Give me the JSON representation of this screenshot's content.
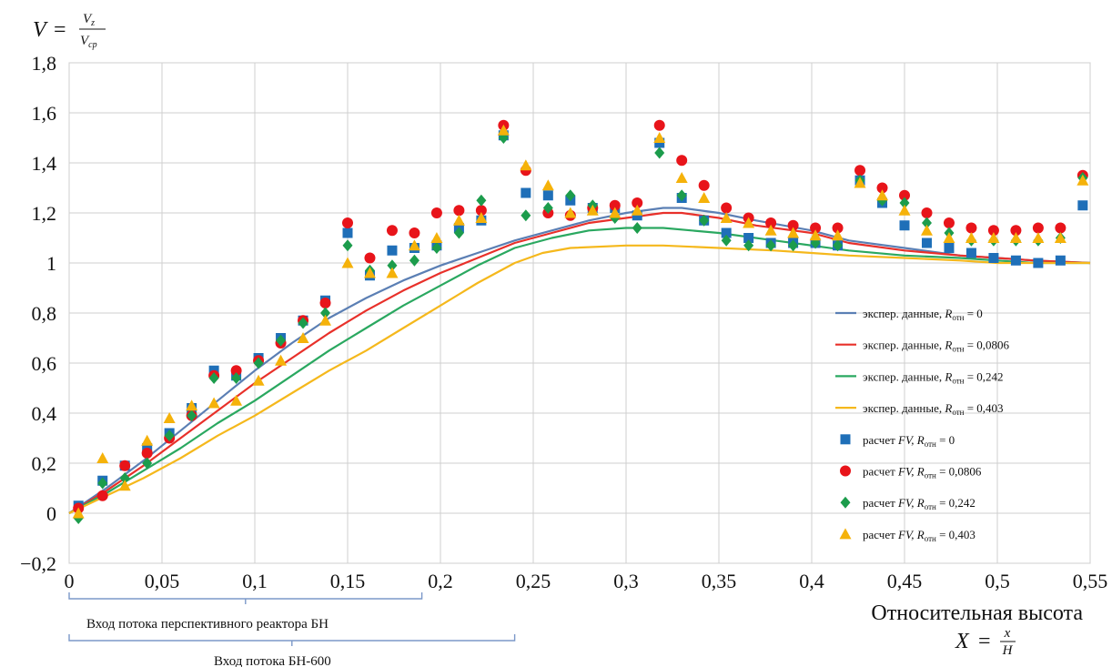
{
  "chart_data": {
    "type": "scatter",
    "ylabel": {
      "symbol": "V",
      "eq": "=",
      "num": "V",
      "num_sub": "z",
      "den": "V",
      "den_sub": "cp"
    },
    "xlabel": {
      "text": "Относительная высота",
      "symbol": "X",
      "eq": "=",
      "num": "x",
      "den": "H"
    },
    "xlim": [
      0,
      0.55
    ],
    "ylim": [
      -0.2,
      1.8
    ],
    "xticks": [
      0,
      0.05,
      0.1,
      0.15,
      0.2,
      0.25,
      0.3,
      0.35,
      0.4,
      0.45,
      0.5,
      0.55
    ],
    "xtick_labels": [
      "0",
      "0,05",
      "0,1",
      "0,15",
      "0,2",
      "0,25",
      "0,3",
      "0,35",
      "0,4",
      "0,45",
      "0,5",
      "0,55"
    ],
    "yticks": [
      -0.2,
      0,
      0.2,
      0.4,
      0.6,
      0.8,
      1,
      1.2,
      1.4,
      1.6,
      1.8
    ],
    "ytick_labels": [
      "−0,2",
      "0",
      "0,2",
      "0,4",
      "0,6",
      "0,8",
      "1",
      "1,2",
      "1,4",
      "1,6",
      "1,8"
    ],
    "grid": true,
    "legend_position": "right",
    "annotations": [
      {
        "text": "Вход потока перспективного реактора БН",
        "x_range": [
          0,
          0.19
        ]
      },
      {
        "text": "Вход потока БН-600",
        "x_range": [
          0,
          0.24
        ]
      }
    ],
    "lines": [
      {
        "name_prefix": "экспер. данные,",
        "name_var": "R",
        "name_sub": "отн",
        "name_value": "= 0",
        "color": "#5b7fb4",
        "x": [
          0.0,
          0.02,
          0.04,
          0.06,
          0.08,
          0.1,
          0.12,
          0.14,
          0.16,
          0.18,
          0.2,
          0.22,
          0.24,
          0.26,
          0.28,
          0.3,
          0.32,
          0.33,
          0.35,
          0.37,
          0.4,
          0.42,
          0.45,
          0.48,
          0.5,
          0.52,
          0.55
        ],
        "y": [
          0.0,
          0.1,
          0.21,
          0.33,
          0.45,
          0.57,
          0.68,
          0.78,
          0.86,
          0.93,
          0.99,
          1.04,
          1.09,
          1.13,
          1.17,
          1.2,
          1.22,
          1.22,
          1.2,
          1.17,
          1.13,
          1.09,
          1.06,
          1.03,
          1.02,
          1.01,
          1.0
        ]
      },
      {
        "name_prefix": "экспер. данные,",
        "name_var": "R",
        "name_sub": "отн",
        "name_value": "= 0,0806",
        "color": "#e8302a",
        "x": [
          0.0,
          0.02,
          0.04,
          0.06,
          0.08,
          0.1,
          0.12,
          0.14,
          0.16,
          0.18,
          0.2,
          0.22,
          0.24,
          0.26,
          0.28,
          0.3,
          0.32,
          0.33,
          0.35,
          0.37,
          0.4,
          0.42,
          0.45,
          0.48,
          0.5,
          0.52,
          0.55
        ],
        "y": [
          0.0,
          0.09,
          0.19,
          0.3,
          0.41,
          0.52,
          0.62,
          0.72,
          0.81,
          0.89,
          0.96,
          1.02,
          1.08,
          1.12,
          1.16,
          1.18,
          1.2,
          1.2,
          1.18,
          1.15,
          1.12,
          1.08,
          1.05,
          1.03,
          1.02,
          1.01,
          1.0
        ]
      },
      {
        "name_prefix": "экспер. данные,",
        "name_var": "R",
        "name_sub": "отн",
        "name_value": "= 0,242",
        "color": "#2aa860",
        "x": [
          0.0,
          0.02,
          0.04,
          0.06,
          0.08,
          0.1,
          0.12,
          0.14,
          0.16,
          0.18,
          0.2,
          0.22,
          0.24,
          0.26,
          0.28,
          0.3,
          0.32,
          0.35,
          0.38,
          0.4,
          0.42,
          0.45,
          0.48,
          0.5,
          0.52,
          0.55
        ],
        "y": [
          0.0,
          0.08,
          0.17,
          0.26,
          0.36,
          0.45,
          0.55,
          0.65,
          0.74,
          0.83,
          0.91,
          0.99,
          1.06,
          1.1,
          1.13,
          1.14,
          1.14,
          1.12,
          1.09,
          1.07,
          1.05,
          1.03,
          1.02,
          1.01,
          1.0,
          1.0
        ]
      },
      {
        "name_prefix": "экспер. данные,",
        "name_var": "R",
        "name_sub": "отн",
        "name_value": "= 0,403",
        "color": "#f5b81c",
        "x": [
          0.0,
          0.02,
          0.04,
          0.06,
          0.08,
          0.1,
          0.12,
          0.14,
          0.16,
          0.18,
          0.2,
          0.22,
          0.24,
          0.255,
          0.27,
          0.3,
          0.32,
          0.35,
          0.38,
          0.4,
          0.42,
          0.45,
          0.48,
          0.5,
          0.52,
          0.55
        ],
        "y": [
          0.0,
          0.07,
          0.14,
          0.22,
          0.31,
          0.39,
          0.48,
          0.57,
          0.65,
          0.74,
          0.83,
          0.92,
          1.0,
          1.04,
          1.06,
          1.07,
          1.07,
          1.06,
          1.05,
          1.04,
          1.03,
          1.02,
          1.01,
          1.0,
          1.0,
          1.0
        ]
      }
    ],
    "series": [
      {
        "name_prefix": "расчет",
        "name_mid": "FV,",
        "name_var": "R",
        "name_sub": "отн",
        "name_value": "= 0",
        "marker": "square",
        "color": "#1f6fb8",
        "x": [
          0.005,
          0.018,
          0.03,
          0.042,
          0.054,
          0.066,
          0.078,
          0.09,
          0.102,
          0.114,
          0.126,
          0.138,
          0.15,
          0.162,
          0.174,
          0.186,
          0.198,
          0.21,
          0.222,
          0.234,
          0.246,
          0.258,
          0.27,
          0.282,
          0.294,
          0.306,
          0.318,
          0.33,
          0.342,
          0.354,
          0.366,
          0.378,
          0.39,
          0.402,
          0.414,
          0.426,
          0.438,
          0.45,
          0.462,
          0.474,
          0.486,
          0.498,
          0.51,
          0.522,
          0.534,
          0.546
        ],
        "y": [
          0.03,
          0.13,
          0.19,
          0.26,
          0.32,
          0.42,
          0.57,
          0.55,
          0.62,
          0.7,
          0.77,
          0.85,
          1.12,
          0.95,
          1.05,
          1.06,
          1.07,
          1.14,
          1.17,
          1.51,
          1.28,
          1.27,
          1.25,
          1.22,
          1.22,
          1.19,
          1.48,
          1.26,
          1.17,
          1.12,
          1.1,
          1.08,
          1.08,
          1.08,
          1.07,
          1.33,
          1.24,
          1.15,
          1.08,
          1.06,
          1.04,
          1.02,
          1.01,
          1.0,
          1.01,
          1.23
        ]
      },
      {
        "name_prefix": "расчет",
        "name_mid": "FV,",
        "name_var": "R",
        "name_sub": "отн",
        "name_value": "= 0,0806",
        "marker": "circle",
        "color": "#e8141a",
        "x": [
          0.005,
          0.018,
          0.03,
          0.042,
          0.054,
          0.066,
          0.078,
          0.09,
          0.102,
          0.114,
          0.126,
          0.138,
          0.15,
          0.162,
          0.174,
          0.186,
          0.198,
          0.21,
          0.222,
          0.234,
          0.246,
          0.258,
          0.27,
          0.282,
          0.294,
          0.306,
          0.318,
          0.33,
          0.342,
          0.354,
          0.366,
          0.378,
          0.39,
          0.402,
          0.414,
          0.426,
          0.438,
          0.45,
          0.462,
          0.474,
          0.486,
          0.498,
          0.51,
          0.522,
          0.534,
          0.546
        ],
        "y": [
          0.02,
          0.07,
          0.19,
          0.24,
          0.3,
          0.39,
          0.55,
          0.57,
          0.61,
          0.68,
          0.77,
          0.84,
          1.16,
          1.02,
          1.13,
          1.12,
          1.2,
          1.21,
          1.21,
          1.55,
          1.37,
          1.2,
          1.19,
          1.22,
          1.23,
          1.24,
          1.55,
          1.41,
          1.31,
          1.22,
          1.18,
          1.16,
          1.15,
          1.14,
          1.14,
          1.37,
          1.3,
          1.27,
          1.2,
          1.16,
          1.14,
          1.13,
          1.13,
          1.14,
          1.14,
          1.35
        ]
      },
      {
        "name_prefix": "расчет",
        "name_mid": "FV,",
        "name_var": "R",
        "name_sub": "отн",
        "name_value": "= 0,242",
        "marker": "diamond",
        "color": "#1c9c4c",
        "x": [
          0.005,
          0.018,
          0.03,
          0.042,
          0.054,
          0.066,
          0.078,
          0.09,
          0.102,
          0.114,
          0.126,
          0.138,
          0.15,
          0.162,
          0.174,
          0.186,
          0.198,
          0.21,
          0.222,
          0.234,
          0.246,
          0.258,
          0.27,
          0.282,
          0.294,
          0.306,
          0.318,
          0.33,
          0.342,
          0.354,
          0.366,
          0.378,
          0.39,
          0.402,
          0.414,
          0.426,
          0.438,
          0.45,
          0.462,
          0.474,
          0.486,
          0.498,
          0.51,
          0.522,
          0.534,
          0.546
        ],
        "y": [
          -0.02,
          0.12,
          0.14,
          0.2,
          0.31,
          0.39,
          0.54,
          0.54,
          0.6,
          0.69,
          0.76,
          0.8,
          1.07,
          0.97,
          0.99,
          1.01,
          1.06,
          1.12,
          1.25,
          1.5,
          1.19,
          1.22,
          1.27,
          1.23,
          1.18,
          1.14,
          1.44,
          1.27,
          1.17,
          1.09,
          1.07,
          1.07,
          1.07,
          1.08,
          1.07,
          1.33,
          1.25,
          1.24,
          1.16,
          1.12,
          1.09,
          1.09,
          1.09,
          1.09,
          1.1,
          1.34
        ]
      },
      {
        "name_prefix": "расчет",
        "name_mid": "FV,",
        "name_var": "R",
        "name_sub": "отн",
        "name_value": "= 0,403",
        "marker": "triangle",
        "color": "#f5b20a",
        "x": [
          0.005,
          0.018,
          0.03,
          0.042,
          0.054,
          0.066,
          0.078,
          0.09,
          0.102,
          0.114,
          0.126,
          0.138,
          0.15,
          0.162,
          0.174,
          0.186,
          0.198,
          0.21,
          0.222,
          0.234,
          0.246,
          0.258,
          0.27,
          0.282,
          0.294,
          0.306,
          0.318,
          0.33,
          0.342,
          0.354,
          0.366,
          0.378,
          0.39,
          0.402,
          0.414,
          0.426,
          0.438,
          0.45,
          0.462,
          0.474,
          0.486,
          0.498,
          0.51,
          0.522,
          0.534,
          0.546
        ],
        "y": [
          0.0,
          0.22,
          0.11,
          0.29,
          0.38,
          0.43,
          0.44,
          0.45,
          0.53,
          0.61,
          0.7,
          0.77,
          1.0,
          0.96,
          0.96,
          1.07,
          1.1,
          1.17,
          1.18,
          1.53,
          1.39,
          1.31,
          1.2,
          1.21,
          1.2,
          1.21,
          1.5,
          1.34,
          1.26,
          1.18,
          1.16,
          1.13,
          1.12,
          1.11,
          1.11,
          1.32,
          1.27,
          1.21,
          1.13,
          1.1,
          1.1,
          1.1,
          1.1,
          1.1,
          1.1,
          1.33
        ]
      }
    ]
  }
}
